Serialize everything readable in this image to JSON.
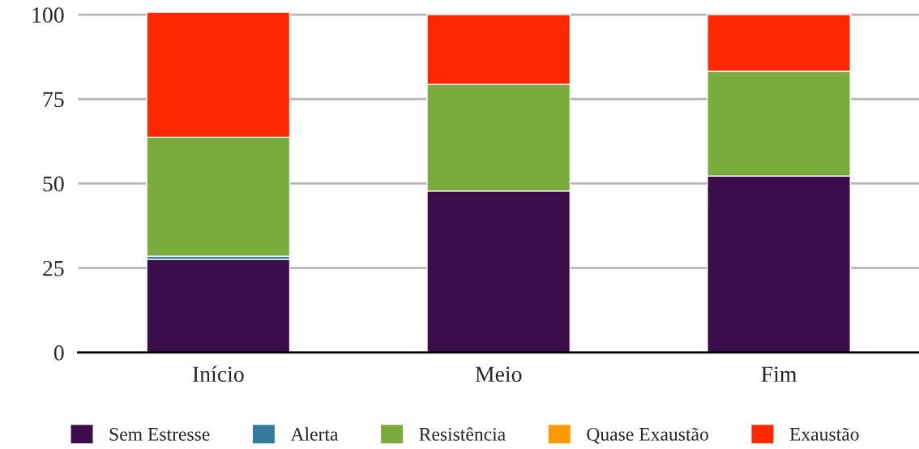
{
  "chart_data": {
    "type": "bar",
    "stacked": true,
    "categories": [
      "Início",
      "Meio",
      "Fim"
    ],
    "series": [
      {
        "name": "Sem Estresse",
        "color": "#3d0c4a",
        "values": [
          27.6,
          47.8,
          52.2
        ]
      },
      {
        "name": "Alerta",
        "color": "#35799f",
        "values": [
          0.9,
          0,
          0
        ]
      },
      {
        "name": "Resistência",
        "color": "#79ac3c",
        "values": [
          35.2,
          31.5,
          31.0
        ]
      },
      {
        "name": "Quase Exaustão",
        "color": "#ff9900",
        "values": [
          0,
          0,
          0
        ]
      },
      {
        "name": "Exaustão",
        "color": "#ff2800",
        "values": [
          37.0,
          20.7,
          16.8
        ]
      }
    ],
    "ylim": [
      0,
      101
    ],
    "yticks": [
      0,
      25,
      50,
      75,
      100
    ],
    "grid": "y",
    "legend": "bottom"
  }
}
